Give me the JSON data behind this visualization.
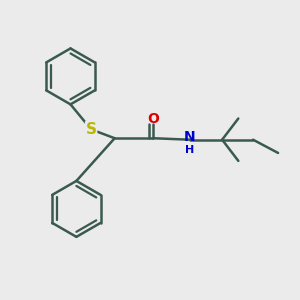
{
  "bg_color": "#ebebeb",
  "bond_color": "#3a5a50",
  "S_color": "#b8b800",
  "O_color": "#dd0000",
  "N_color": "#0000cc",
  "linewidth": 1.8,
  "figsize": [
    3.0,
    3.0
  ],
  "dpi": 100,
  "xlim": [
    0,
    10
  ],
  "ylim": [
    0,
    10
  ]
}
